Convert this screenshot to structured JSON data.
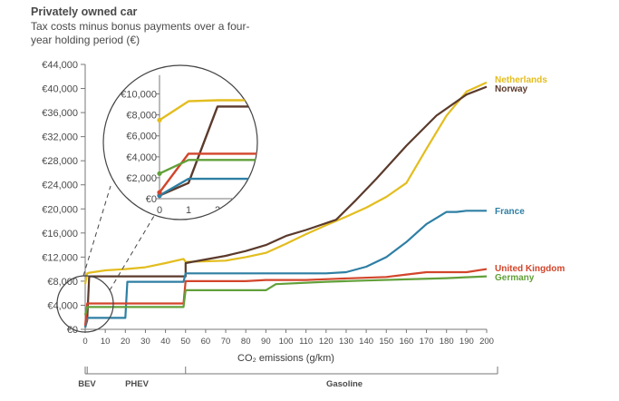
{
  "chart_data": {
    "type": "line",
    "title": "Privately owned car",
    "subtitle": "Tax costs minus bonus payments over a four-year holding period (€)",
    "xlabel": "CO₂ emissions (g/km)",
    "ylabel": "",
    "xlim": [
      0,
      200
    ],
    "ylim": [
      0,
      44000
    ],
    "x_ticks": [
      "0",
      "10",
      "20",
      "30",
      "40",
      "50",
      "60",
      "70",
      "80",
      "90",
      "100",
      "110",
      "120",
      "130",
      "140",
      "150",
      "160",
      "170",
      "180",
      "190",
      "200"
    ],
    "y_ticks": [
      "€0",
      "€4,000",
      "€8,000",
      "€12,000",
      "€16,000",
      "€20,000",
      "€24,000",
      "€28,000",
      "€32,000",
      "€36,000",
      "€40,000",
      "€44,000"
    ],
    "groups": [
      {
        "label": "BEV",
        "from": 0,
        "to": 1
      },
      {
        "label": "PHEV",
        "from": 1,
        "to": 50
      },
      {
        "label": "Gasoline",
        "from": 50,
        "to": 200
      }
    ],
    "series": [
      {
        "name": "Netherlands",
        "color": "#e3bd1e",
        "points": [
          [
            0,
            7500
          ],
          [
            1,
            9300
          ],
          [
            2,
            9400
          ],
          [
            10,
            9800
          ],
          [
            20,
            10000
          ],
          [
            30,
            10300
          ],
          [
            40,
            11000
          ],
          [
            49,
            11700
          ],
          [
            50,
            11200
          ],
          [
            60,
            11300
          ],
          [
            70,
            11400
          ],
          [
            80,
            12000
          ],
          [
            90,
            12700
          ],
          [
            100,
            14200
          ],
          [
            110,
            15800
          ],
          [
            120,
            17300
          ],
          [
            130,
            18700
          ],
          [
            140,
            20200
          ],
          [
            150,
            22000
          ],
          [
            160,
            24300
          ],
          [
            170,
            30000
          ],
          [
            180,
            35500
          ],
          [
            190,
            39500
          ],
          [
            200,
            41000
          ]
        ]
      },
      {
        "name": "Norway",
        "color": "#5b3a2c",
        "points": [
          [
            0,
            300
          ],
          [
            1,
            1500
          ],
          [
            2,
            8800
          ],
          [
            50,
            8800
          ],
          [
            50,
            11000
          ],
          [
            60,
            11600
          ],
          [
            70,
            12200
          ],
          [
            80,
            13000
          ],
          [
            90,
            14000
          ],
          [
            100,
            15500
          ],
          [
            110,
            16500
          ],
          [
            125,
            18200
          ],
          [
            135,
            21500
          ],
          [
            145,
            25000
          ],
          [
            160,
            30500
          ],
          [
            175,
            35500
          ],
          [
            190,
            39000
          ],
          [
            200,
            40300
          ]
        ]
      },
      {
        "name": "France",
        "color": "#2e7fa4",
        "points": [
          [
            0,
            300
          ],
          [
            1,
            1900
          ],
          [
            20,
            1900
          ],
          [
            21,
            7900
          ],
          [
            49,
            7900
          ],
          [
            50,
            9300
          ],
          [
            100,
            9300
          ],
          [
            120,
            9300
          ],
          [
            130,
            9500
          ],
          [
            140,
            10400
          ],
          [
            150,
            12000
          ],
          [
            160,
            14500
          ],
          [
            170,
            17500
          ],
          [
            180,
            19500
          ],
          [
            185,
            19500
          ],
          [
            190,
            19700
          ],
          [
            200,
            19700
          ]
        ]
      },
      {
        "name": "United Kingdom",
        "color": "#d2452b",
        "points": [
          [
            0,
            600
          ],
          [
            1,
            4300
          ],
          [
            49,
            4300
          ],
          [
            50,
            8000
          ],
          [
            80,
            8000
          ],
          [
            90,
            8200
          ],
          [
            110,
            8200
          ],
          [
            125,
            8400
          ],
          [
            150,
            8700
          ],
          [
            160,
            9100
          ],
          [
            170,
            9500
          ],
          [
            190,
            9500
          ],
          [
            200,
            10000
          ]
        ]
      },
      {
        "name": "Germany",
        "color": "#62a03a",
        "points": [
          [
            0,
            2400
          ],
          [
            1,
            3700
          ],
          [
            49,
            3700
          ],
          [
            50,
            6500
          ],
          [
            90,
            6500
          ],
          [
            95,
            7500
          ],
          [
            120,
            7900
          ],
          [
            140,
            8100
          ],
          [
            160,
            8300
          ],
          [
            180,
            8500
          ],
          [
            200,
            8800
          ]
        ]
      }
    ],
    "inset": {
      "xlim": [
        0,
        3
      ],
      "ylim": [
        0,
        11000
      ],
      "x_ticks": [
        "0",
        "1",
        "2",
        "3"
      ],
      "y_ticks": [
        "€0",
        "€2,000",
        "€4,000",
        "€6,000",
        "€8,000",
        "€10,000"
      ]
    },
    "legend_placement": "right, at line ends",
    "grid": false
  }
}
